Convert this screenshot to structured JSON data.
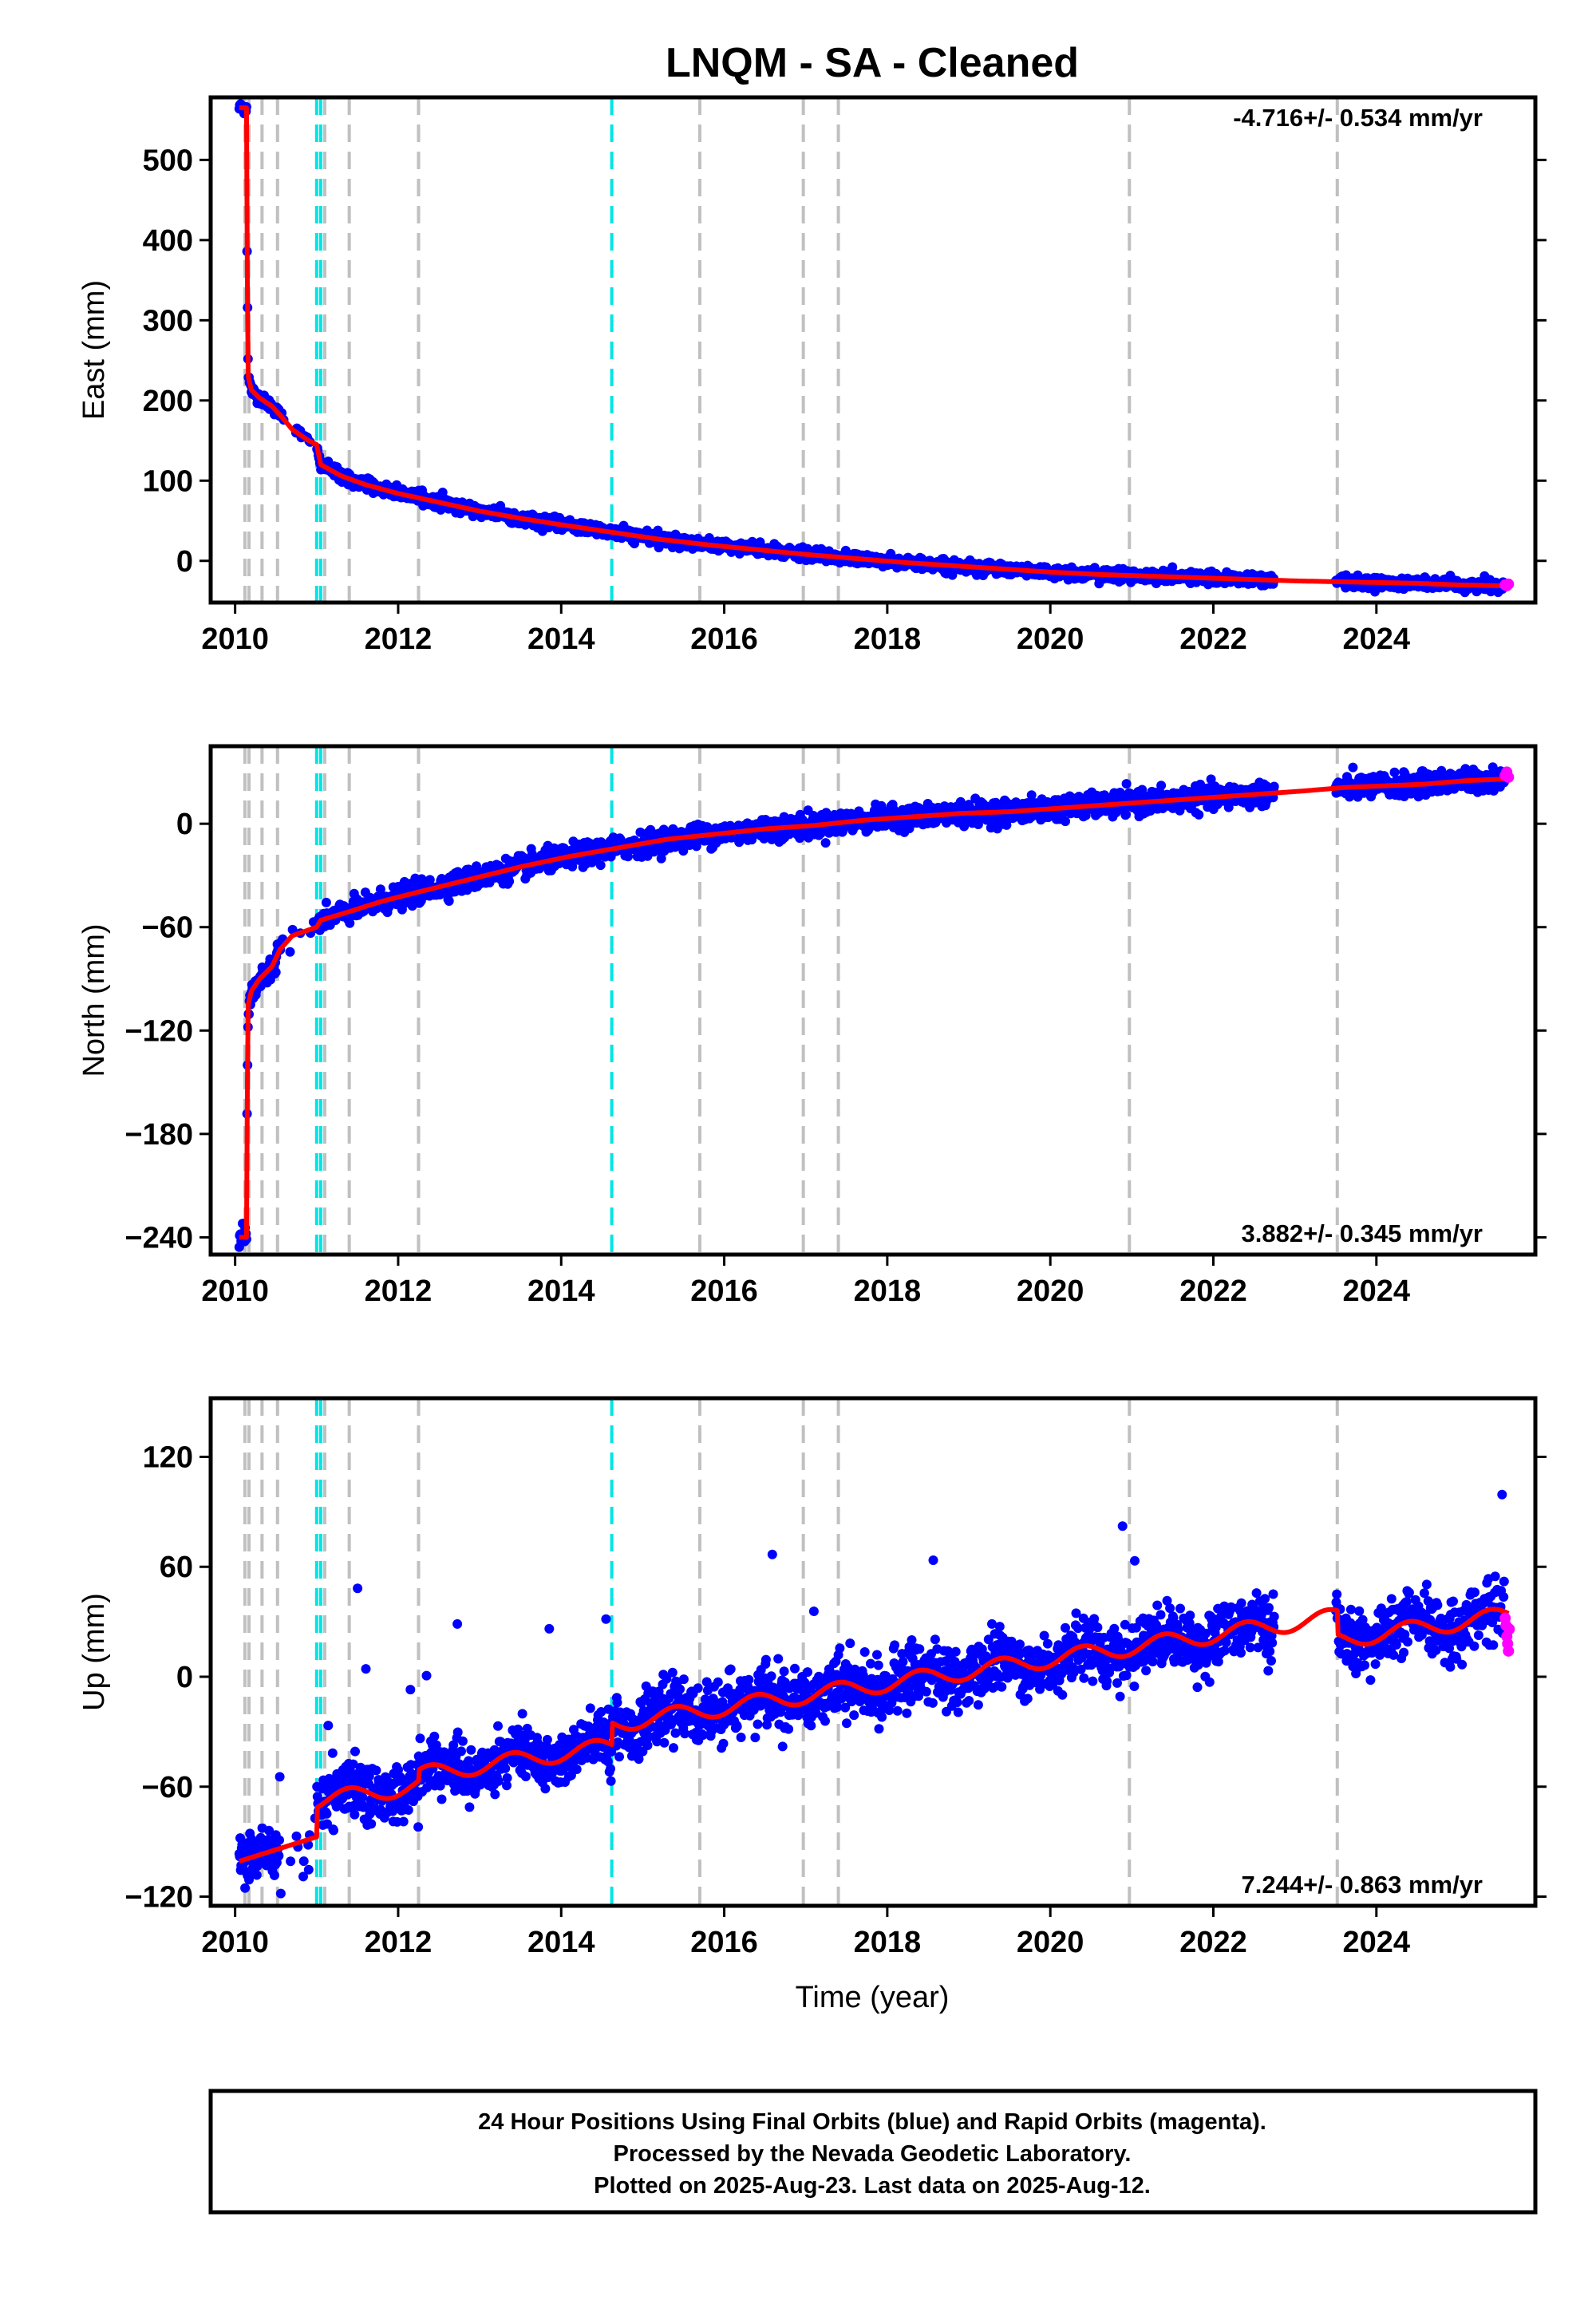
{
  "title": "LNQM  - SA - Cleaned",
  "xlabel": "Time (year)",
  "footer_lines": [
    "24 Hour Positions Using Final Orbits (blue) and Rapid Orbits (magenta).",
    "Processed by the Nevada Geodetic Laboratory.",
    "Plotted on 2025-Aug-23. Last data on 2025-Aug-12."
  ],
  "colors": {
    "final_orbits": "#0000ff",
    "rapid_orbits": "#ff00ff",
    "model": "#ff0000",
    "equipment_change_lines": "#c0c0c0",
    "earthquake_lines": "#00e5e5"
  },
  "event_lines": {
    "gray": [
      2010.12,
      2010.17,
      2010.33,
      2010.52,
      2011.1,
      2011.4,
      2012.25,
      2015.7,
      2016.97,
      2017.4,
      2020.97,
      2023.52
    ],
    "cyan": [
      2011.0,
      2011.05,
      2014.62
    ]
  },
  "chart_data": [
    {
      "type": "scatter",
      "panel": "east",
      "ylabel": "East (mm)",
      "rate_label": "-4.716+/- 0.534 mm/yr",
      "xlim": [
        2009.7,
        2025.95
      ],
      "ylim": [
        -52,
        578
      ],
      "x_ticks": [
        2010,
        2012,
        2014,
        2016,
        2018,
        2020,
        2022,
        2024
      ],
      "y_ticks": [
        0,
        100,
        200,
        300,
        400,
        500
      ],
      "model_x": [
        2010.05,
        2010.14,
        2010.145,
        2010.16,
        2010.2,
        2010.3,
        2010.45,
        2010.55,
        2010.7,
        2010.9,
        2011.0,
        2011.05,
        2011.3,
        2011.6,
        2012.0,
        2012.5,
        2013.0,
        2013.5,
        2014.0,
        2014.6,
        2015.2,
        2015.8,
        2016.4,
        2017.0,
        2017.6,
        2018.2,
        2018.8,
        2019.4,
        2020.0,
        2020.6,
        2021.2,
        2021.8,
        2022.4,
        2023.0,
        2023.5,
        2024.0,
        2024.5,
        2025.0,
        2025.5,
        2025.6
      ],
      "model_y": [
        565,
        565,
        400,
        230,
        213,
        203,
        193,
        182,
        164,
        150,
        145,
        120,
        106,
        95,
        84,
        73,
        62,
        53,
        45,
        36,
        27,
        20,
        14,
        8,
        3,
        -2,
        -6,
        -10,
        -14,
        -17,
        -19,
        -21,
        -23,
        -25,
        -26,
        -27,
        -28,
        -30,
        -31,
        -31
      ],
      "rapid_x": [
        2025.58,
        2025.6,
        2025.62
      ],
      "rapid_y": [
        -30,
        -31,
        -29
      ]
    },
    {
      "type": "scatter",
      "panel": "north",
      "ylabel": "North (mm)",
      "rate_label": "3.882+/- 0.345 mm/yr",
      "xlim": [
        2009.7,
        2025.95
      ],
      "ylim": [
        -250,
        45
      ],
      "x_ticks": [
        2010,
        2012,
        2014,
        2016,
        2018,
        2020,
        2022,
        2024
      ],
      "y_ticks": [
        -240,
        -180,
        -120,
        -60,
        0
      ],
      "model_x": [
        2010.05,
        2010.14,
        2010.145,
        2010.16,
        2010.2,
        2010.3,
        2010.45,
        2010.55,
        2010.7,
        2011.0,
        2011.05,
        2011.4,
        2011.8,
        2012.3,
        2012.9,
        2013.5,
        2014.1,
        2014.7,
        2015.3,
        2015.9,
        2016.5,
        2017.1,
        2017.7,
        2018.3,
        2018.9,
        2019.5,
        2020.1,
        2020.7,
        2021.3,
        2021.9,
        2022.5,
        2023.1,
        2023.6,
        2024.1,
        2024.6,
        2025.1,
        2025.6
      ],
      "model_y": [
        -240,
        -240,
        -175,
        -105,
        -97,
        -90,
        -83,
        -73,
        -65,
        -60,
        -56,
        -51,
        -45,
        -39,
        -32,
        -25,
        -19,
        -14,
        -9,
        -6,
        -3,
        -1,
        2,
        4,
        6,
        7,
        9,
        11,
        13,
        15,
        17,
        19,
        21,
        22,
        23,
        25,
        26
      ],
      "rapid_x": [
        2025.58,
        2025.6,
        2025.62
      ],
      "rapid_y": [
        28,
        30,
        27
      ]
    },
    {
      "type": "scatter",
      "panel": "up",
      "ylabel": "Up (mm)",
      "rate_label": "7.244+/- 0.863 mm/yr",
      "xlim": [
        2009.7,
        2025.95
      ],
      "ylim": [
        -125,
        152
      ],
      "x_ticks": [
        2010,
        2012,
        2014,
        2016,
        2018,
        2020,
        2022,
        2024
      ],
      "y_ticks": [
        -120,
        -60,
        0,
        60,
        120
      ],
      "rapid_x": [
        2025.58,
        2025.59,
        2025.6,
        2025.61,
        2025.62,
        2025.63
      ],
      "rapid_y": [
        32,
        28,
        22,
        18,
        14,
        26
      ]
    }
  ]
}
